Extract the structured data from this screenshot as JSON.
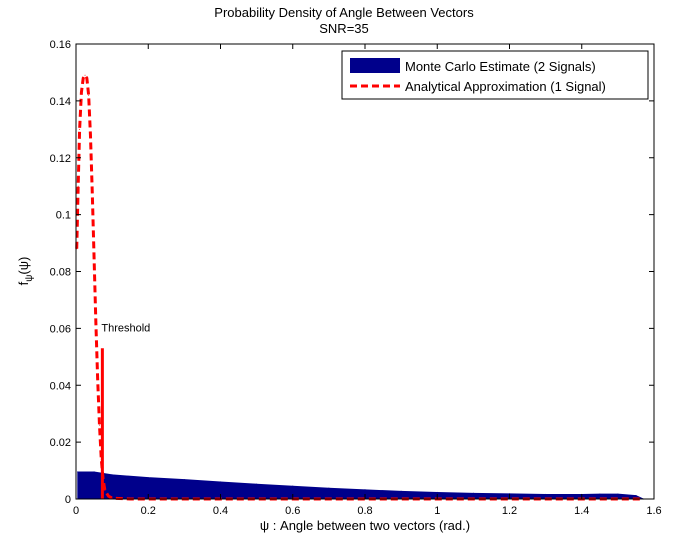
{
  "chart_data": {
    "type": "bar",
    "title": "Probability Density of Angle Between Vectors",
    "subtitle": "SNR=35",
    "xlabel": "ψ : Angle between two vectors (rad.)",
    "ylabel_main": "f",
    "ylabel_sub": "ψ",
    "ylabel_arg": "(ψ)",
    "xlim": [
      0,
      1.6
    ],
    "ylim": [
      0,
      0.16
    ],
    "xticks": [
      "0",
      "0.2",
      "0.4",
      "0.6",
      "0.8",
      "1",
      "1.2",
      "1.4",
      "1.6"
    ],
    "yticks": [
      "0",
      "0.02",
      "0.04",
      "0.06",
      "0.08",
      "0.1",
      "0.12",
      "0.14",
      "0.16"
    ],
    "xtick_values": [
      0,
      0.2,
      0.4,
      0.6,
      0.8,
      1.0,
      1.2,
      1.4,
      1.6
    ],
    "ytick_values": [
      0,
      0.02,
      0.04,
      0.06,
      0.08,
      0.1,
      0.12,
      0.14,
      0.16
    ],
    "grid": false,
    "legend_position": "top-right",
    "series": [
      {
        "name": "Monte Carlo Estimate (2 Signals)",
        "style": "filled-histogram",
        "color": "#00008b",
        "x": [
          0.005,
          0.05,
          0.1,
          0.2,
          0.3,
          0.4,
          0.5,
          0.6,
          0.7,
          0.8,
          0.9,
          1.0,
          1.1,
          1.2,
          1.3,
          1.4,
          1.45,
          1.5,
          1.55,
          1.57
        ],
        "y": [
          0.0095,
          0.0095,
          0.0085,
          0.0075,
          0.0068,
          0.006,
          0.0052,
          0.0045,
          0.0038,
          0.0032,
          0.0027,
          0.0023,
          0.002,
          0.0018,
          0.0016,
          0.0016,
          0.0017,
          0.0017,
          0.0012,
          0.0
        ]
      },
      {
        "name": "Analytical Approximation (1 Signal)",
        "style": "dashed-line",
        "color": "#ff0000",
        "x": [
          0.002,
          0.006,
          0.01,
          0.015,
          0.02,
          0.025,
          0.03,
          0.035,
          0.04,
          0.045,
          0.05,
          0.055,
          0.06,
          0.065,
          0.07,
          0.075,
          0.08,
          0.09,
          0.1,
          0.15,
          0.3,
          0.6,
          0.9,
          1.2,
          1.5,
          1.57
        ],
        "y": [
          0.088,
          0.11,
          0.13,
          0.143,
          0.148,
          0.149,
          0.148,
          0.142,
          0.128,
          0.108,
          0.085,
          0.062,
          0.042,
          0.026,
          0.014,
          0.007,
          0.003,
          0.001,
          0.0003,
          0.0,
          0.0,
          0.0,
          0.0,
          0.0,
          0.0,
          0.0
        ]
      }
    ],
    "threshold": {
      "label": "Threshold",
      "x": 0.073,
      "y_top": 0.053,
      "color": "#ff0000"
    }
  }
}
